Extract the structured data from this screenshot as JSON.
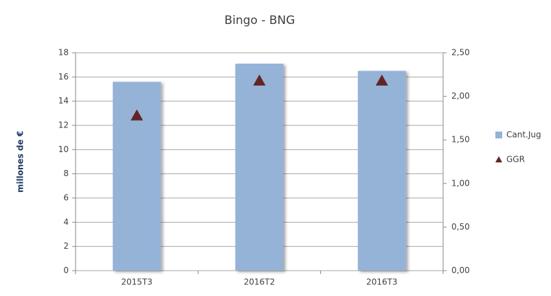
{
  "chart_data": {
    "type": "bar",
    "title": "Bingo - BNG",
    "ylabel": "millones de €",
    "categories": [
      "2015T3",
      "2016T2",
      "2016T3"
    ],
    "series": [
      {
        "name": "Cant.Jug",
        "color": "#95b3d7",
        "values": [
          15.6,
          17.1,
          16.5
        ]
      },
      {
        "name": "GGR",
        "color": "#632523",
        "axis": "y2",
        "values": [
          1.78,
          2.18,
          2.18
        ]
      }
    ],
    "ylim": [
      0,
      18
    ],
    "yticks": [
      0,
      2,
      4,
      6,
      8,
      10,
      12,
      14,
      16,
      18
    ],
    "y2lim": [
      0,
      2.5
    ],
    "y2ticks": [
      {
        "value": 0,
        "label": "0,00"
      },
      {
        "value": 0.5,
        "label": "0,50"
      },
      {
        "value": 1,
        "label": "1,00"
      },
      {
        "value": 1.5,
        "label": "1,50"
      },
      {
        "value": 2,
        "label": "2,00"
      },
      {
        "value": 2.5,
        "label": "2,50"
      }
    ],
    "grid": true,
    "legend": "right"
  }
}
